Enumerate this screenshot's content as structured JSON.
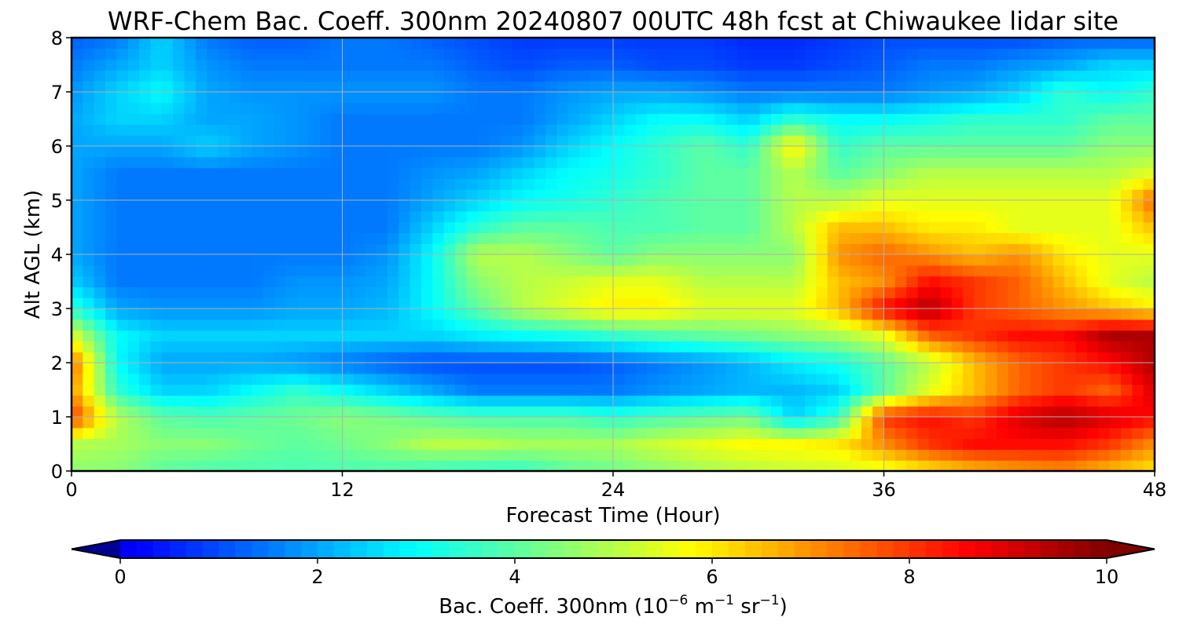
{
  "chart_data": {
    "type": "heatmap",
    "title": "WRF-Chem Bac. Coeff. 300nm  20240807 00UTC 48h fcst at Chiwaukee lidar site",
    "xlabel": "Forecast Time (Hour)",
    "ylabel": "Alt AGL (km)",
    "xlim": [
      0,
      48
    ],
    "ylim": [
      0,
      8
    ],
    "xticks": [
      0,
      12,
      24,
      36,
      48
    ],
    "yticks": [
      0,
      1,
      2,
      3,
      4,
      5,
      6,
      7,
      8
    ],
    "grid": true,
    "colormap": "jet",
    "colorbar": {
      "label_main": "Bac. Coeff. 300nm  (10",
      "label_exp1": "−6",
      "label_mid": " m",
      "label_exp2": "−1",
      "label_mid2": " sr",
      "label_exp3": "−1",
      "label_end": ")",
      "min": 0,
      "max": 10,
      "ticks": [
        0,
        2,
        4,
        6,
        8,
        10
      ],
      "extend": "both",
      "placement": "bottom"
    },
    "x": [
      0,
      2,
      4,
      6,
      8,
      10,
      12,
      14,
      16,
      18,
      20,
      22,
      24,
      26,
      28,
      30,
      32,
      34,
      36,
      38,
      40,
      42,
      44,
      46,
      48
    ],
    "y": [
      0,
      0.5,
      1,
      1.5,
      2,
      2.5,
      3,
      3.5,
      4,
      4.5,
      5,
      5.5,
      6,
      6.5,
      7,
      7.5,
      8
    ],
    "z": [
      [
        4.5,
        4.5,
        4.0,
        3.8,
        3.8,
        3.8,
        3.8,
        3.8,
        3.6,
        3.5,
        3.5,
        4.0,
        4.2,
        4.5,
        4.8,
        5.0,
        5.2,
        5.3,
        5.5,
        6.0,
        6.5,
        6.8,
        7.0,
        6.5,
        6.0
      ],
      [
        5.0,
        4.8,
        4.5,
        4.5,
        4.2,
        4.0,
        4.2,
        4.5,
        5.0,
        5.0,
        4.8,
        4.8,
        4.8,
        5.2,
        5.5,
        5.8,
        5.8,
        6.0,
        7.0,
        8.0,
        8.5,
        8.5,
        8.5,
        8.0,
        7.0
      ],
      [
        8.0,
        5.0,
        4.0,
        3.8,
        4.0,
        4.2,
        4.5,
        4.3,
        4.0,
        3.8,
        3.8,
        3.8,
        3.5,
        3.8,
        4.0,
        4.2,
        2.5,
        3.5,
        8.0,
        8.5,
        8.0,
        9.0,
        9.5,
        9.0,
        8.5
      ],
      [
        7.0,
        3.5,
        2.5,
        2.5,
        3.0,
        3.5,
        3.0,
        2.5,
        2.0,
        1.5,
        1.5,
        1.5,
        1.5,
        1.8,
        2.0,
        2.2,
        2.2,
        2.5,
        4.0,
        5.5,
        6.5,
        7.5,
        8.0,
        7.5,
        9.0
      ],
      [
        7.5,
        3.0,
        2.0,
        2.0,
        2.0,
        1.8,
        1.5,
        1.2,
        1.0,
        1.0,
        1.0,
        1.0,
        1.2,
        1.5,
        1.8,
        2.2,
        2.8,
        3.2,
        4.0,
        5.0,
        6.5,
        7.5,
        8.0,
        8.5,
        9.5
      ],
      [
        5.5,
        3.0,
        2.5,
        2.5,
        2.5,
        2.5,
        2.5,
        2.5,
        2.5,
        2.8,
        3.0,
        3.2,
        3.5,
        3.8,
        4.0,
        4.2,
        4.5,
        4.8,
        5.5,
        7.5,
        8.0,
        8.5,
        8.5,
        9.5,
        9.5
      ],
      [
        3.5,
        2.0,
        1.8,
        1.8,
        1.8,
        2.0,
        2.0,
        2.2,
        3.0,
        4.0,
        5.0,
        5.5,
        6.0,
        6.0,
        5.5,
        5.5,
        5.5,
        6.5,
        8.5,
        9.5,
        8.0,
        7.5,
        7.0,
        6.5,
        6.0
      ],
      [
        2.5,
        1.5,
        1.5,
        1.5,
        1.5,
        1.8,
        1.8,
        2.0,
        3.0,
        4.5,
        5.0,
        5.2,
        5.5,
        5.5,
        5.0,
        5.0,
        5.0,
        6.5,
        7.0,
        8.5,
        8.0,
        7.5,
        6.5,
        5.5,
        5.0
      ],
      [
        2.0,
        1.5,
        1.5,
        1.5,
        1.5,
        1.5,
        1.5,
        1.8,
        3.0,
        5.0,
        5.0,
        4.5,
        4.0,
        4.5,
        4.5,
        4.5,
        4.5,
        7.0,
        7.5,
        7.0,
        6.5,
        7.0,
        6.0,
        5.5,
        5.5
      ],
      [
        2.0,
        1.5,
        1.5,
        1.5,
        1.5,
        1.5,
        1.5,
        1.5,
        2.5,
        3.5,
        4.0,
        4.0,
        3.8,
        3.8,
        4.0,
        4.0,
        5.0,
        6.5,
        6.5,
        6.0,
        6.0,
        5.5,
        5.5,
        5.5,
        6.5
      ],
      [
        2.0,
        1.5,
        1.5,
        1.5,
        1.5,
        1.5,
        1.5,
        1.5,
        2.0,
        2.5,
        3.0,
        3.2,
        3.5,
        3.8,
        4.0,
        4.0,
        5.0,
        5.0,
        5.5,
        5.5,
        5.5,
        5.5,
        5.5,
        5.5,
        7.5
      ],
      [
        2.0,
        1.5,
        1.5,
        1.5,
        1.5,
        1.5,
        1.5,
        1.5,
        1.8,
        2.0,
        2.5,
        3.0,
        3.2,
        3.5,
        4.0,
        4.0,
        5.0,
        4.0,
        4.5,
        5.0,
        5.0,
        5.0,
        5.0,
        5.0,
        5.5
      ],
      [
        2.0,
        2.0,
        2.0,
        2.5,
        2.0,
        1.8,
        1.5,
        1.5,
        1.5,
        1.5,
        1.8,
        2.5,
        3.0,
        3.5,
        4.0,
        3.5,
        6.0,
        3.5,
        4.0,
        4.0,
        4.0,
        4.0,
        4.0,
        4.5,
        4.5
      ],
      [
        2.0,
        2.5,
        2.5,
        2.0,
        2.0,
        1.8,
        1.5,
        1.5,
        1.5,
        1.5,
        1.5,
        2.0,
        2.5,
        3.0,
        3.0,
        2.5,
        3.5,
        3.0,
        3.0,
        3.2,
        3.5,
        3.5,
        3.5,
        4.0,
        4.0
      ],
      [
        1.8,
        2.5,
        3.0,
        2.0,
        1.8,
        1.8,
        1.8,
        1.8,
        1.8,
        1.5,
        1.5,
        1.8,
        2.0,
        2.0,
        1.8,
        1.5,
        1.5,
        1.5,
        1.5,
        1.8,
        2.0,
        2.5,
        3.5,
        3.0,
        3.5
      ],
      [
        1.5,
        2.0,
        2.5,
        1.8,
        1.5,
        1.5,
        1.5,
        1.5,
        1.5,
        1.2,
        1.0,
        1.2,
        1.2,
        1.0,
        1.0,
        0.8,
        0.8,
        1.0,
        1.2,
        1.5,
        1.5,
        1.8,
        2.0,
        2.5,
        2.5
      ],
      [
        1.2,
        1.5,
        2.5,
        1.5,
        1.2,
        1.2,
        1.5,
        1.5,
        1.2,
        1.0,
        0.8,
        0.8,
        0.8,
        0.8,
        0.8,
        0.6,
        0.6,
        0.8,
        1.0,
        1.0,
        1.0,
        1.0,
        1.2,
        1.2,
        1.2
      ]
    ]
  }
}
